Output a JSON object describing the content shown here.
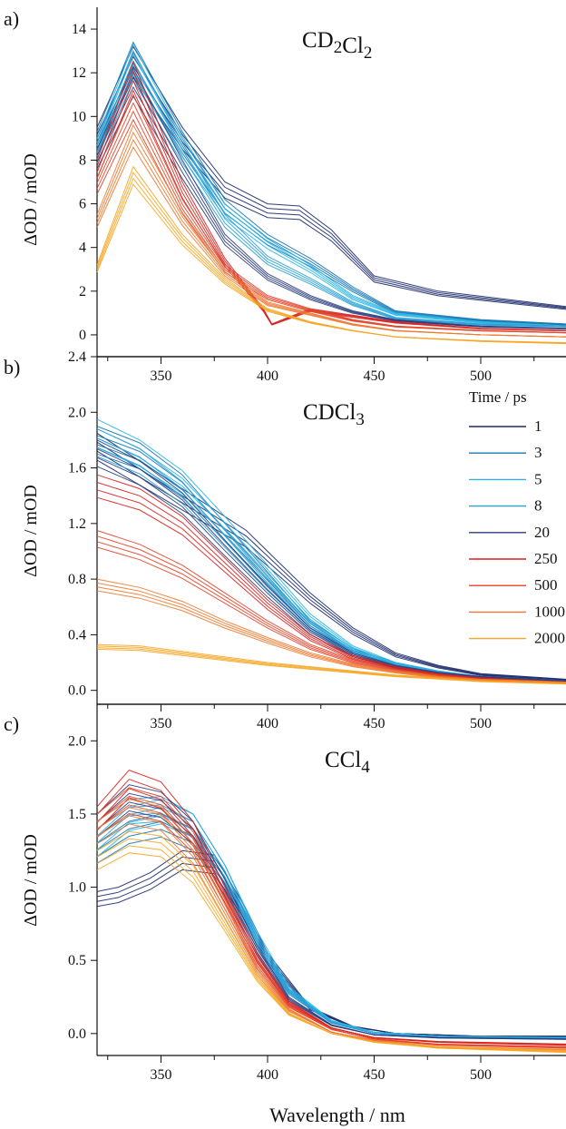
{
  "xlabel": "Wavelength / nm",
  "legend": {
    "title": "Time / ps",
    "entries": [
      {
        "label": "1",
        "color": "#1b2a6b"
      },
      {
        "label": "3",
        "color": "#1678b5"
      },
      {
        "label": "5",
        "color": "#29b6e6"
      },
      {
        "label": "8",
        "color": "#2aa1d6"
      },
      {
        "label": "20",
        "color": "#2b3d7c"
      },
      {
        "label": "250",
        "color": "#d7221f"
      },
      {
        "label": "500",
        "color": "#e4442a"
      },
      {
        "label": "1000",
        "color": "#ee7a30"
      },
      {
        "label": "2000",
        "color": "#f6a623"
      }
    ]
  },
  "chart_data": [
    {
      "type": "line",
      "panel_label": "a)",
      "title": "CD2Cl2",
      "ylabel": "ΔOD / mOD",
      "xlim": [
        320,
        540
      ],
      "ylim": [
        -1,
        15
      ],
      "xticks": [
        "350",
        "400",
        "450",
        "500"
      ],
      "yticks": [
        "0",
        "2",
        "4",
        "6",
        "8",
        "10",
        "12",
        "14"
      ],
      "series": [
        {
          "name": "1",
          "x": [
            320,
            337,
            360,
            380,
            400,
            415,
            430,
            450,
            480,
            540
          ],
          "y": [
            9.5,
            13.2,
            9.5,
            7,
            6,
            5.9,
            4.8,
            2.7,
            2,
            1.3
          ]
        },
        {
          "name": "3",
          "x": [
            320,
            337,
            360,
            380,
            400,
            420,
            440,
            460,
            500,
            540
          ],
          "y": [
            9.3,
            13.4,
            9.3,
            6.2,
            4.6,
            3.5,
            2.2,
            1.1,
            0.7,
            0.5
          ]
        },
        {
          "name": "5",
          "x": [
            320,
            337,
            360,
            380,
            400,
            420,
            440,
            460,
            500,
            540
          ],
          "y": [
            9,
            13.3,
            9.1,
            6,
            4.4,
            3.2,
            1.8,
            1,
            0.6,
            0.4
          ]
        },
        {
          "name": "8",
          "x": [
            320,
            337,
            360,
            380,
            400,
            420,
            440,
            460,
            500,
            540
          ],
          "y": [
            8.8,
            13.0,
            8.8,
            5.5,
            3.6,
            2.6,
            1.5,
            0.8,
            0.5,
            0.4
          ]
        },
        {
          "name": "20",
          "x": [
            320,
            337,
            360,
            380,
            400,
            420,
            440,
            460,
            500,
            540
          ],
          "y": [
            8.5,
            12.2,
            8,
            4.6,
            2.8,
            1.8,
            1.1,
            0.7,
            0.4,
            0.3
          ]
        },
        {
          "name": "250",
          "x": [
            320,
            337,
            360,
            380,
            398,
            402,
            420,
            440,
            460,
            500,
            540
          ],
          "y": [
            8,
            12.5,
            7,
            3.5,
            1.2,
            0.5,
            1.2,
            0.9,
            0.6,
            0.3,
            0.2
          ]
        },
        {
          "name": "500",
          "x": [
            320,
            337,
            360,
            380,
            400,
            420,
            440,
            460,
            500,
            540
          ],
          "y": [
            7.2,
            11,
            6.2,
            3.2,
            1.8,
            1.2,
            0.7,
            0.4,
            0.2,
            0.1
          ]
        },
        {
          "name": "1000",
          "x": [
            320,
            337,
            360,
            380,
            400,
            420,
            440,
            460,
            500,
            540
          ],
          "y": [
            5.5,
            9.6,
            5.6,
            3,
            1.5,
            1,
            0.5,
            0.2,
            0,
            -0.1
          ]
        },
        {
          "name": "2000",
          "x": [
            320,
            337,
            360,
            380,
            400,
            420,
            440,
            460,
            500,
            540
          ],
          "y": [
            3.2,
            7.7,
            4.6,
            2.6,
            1.2,
            0.6,
            0.2,
            -0.1,
            -0.3,
            -0.4
          ]
        }
      ]
    },
    {
      "type": "line",
      "panel_label": "b)",
      "title": "CDCl3",
      "ylabel": "ΔOD / mOD",
      "xlim": [
        320,
        540
      ],
      "ylim": [
        -0.1,
        2.4
      ],
      "xticks": [
        "350",
        "400",
        "450",
        "500"
      ],
      "yticks": [
        "0.0",
        "0.4",
        "0.8",
        "1.2",
        "1.6",
        "2.0",
        "2.4"
      ],
      "series": [
        {
          "name": "1",
          "x": [
            320,
            340,
            360,
            375,
            390,
            400,
            420,
            440,
            460,
            480,
            500,
            540
          ],
          "y": [
            1.85,
            1.65,
            1.45,
            1.3,
            1.15,
            1.0,
            0.7,
            0.45,
            0.27,
            0.18,
            0.12,
            0.08
          ]
        },
        {
          "name": "3",
          "x": [
            320,
            340,
            360,
            380,
            400,
            420,
            440,
            460,
            480,
            500,
            540
          ],
          "y": [
            1.9,
            1.78,
            1.55,
            1.2,
            0.85,
            0.5,
            0.3,
            0.2,
            0.14,
            0.1,
            0.07
          ]
        },
        {
          "name": "5",
          "x": [
            320,
            340,
            360,
            380,
            400,
            420,
            440,
            460,
            480,
            500,
            540
          ],
          "y": [
            1.95,
            1.8,
            1.58,
            1.25,
            0.9,
            0.55,
            0.32,
            0.2,
            0.14,
            0.1,
            0.07
          ]
        },
        {
          "name": "8",
          "x": [
            320,
            340,
            360,
            380,
            400,
            420,
            440,
            460,
            480,
            500,
            540
          ],
          "y": [
            1.88,
            1.74,
            1.5,
            1.15,
            0.8,
            0.48,
            0.28,
            0.18,
            0.13,
            0.1,
            0.07
          ]
        },
        {
          "name": "20",
          "x": [
            320,
            340,
            360,
            380,
            400,
            420,
            440,
            460,
            480,
            500,
            540
          ],
          "y": [
            1.8,
            1.65,
            1.42,
            1.08,
            0.75,
            0.45,
            0.27,
            0.18,
            0.13,
            0.1,
            0.07
          ]
        },
        {
          "name": "250",
          "x": [
            320,
            340,
            360,
            380,
            400,
            420,
            440,
            460,
            480,
            500,
            540
          ],
          "y": [
            1.55,
            1.45,
            1.25,
            0.95,
            0.65,
            0.4,
            0.25,
            0.17,
            0.12,
            0.09,
            0.06
          ]
        },
        {
          "name": "500",
          "x": [
            320,
            340,
            360,
            380,
            400,
            420,
            440,
            460,
            480,
            500,
            540
          ],
          "y": [
            1.15,
            1.05,
            0.9,
            0.7,
            0.5,
            0.33,
            0.22,
            0.15,
            0.11,
            0.08,
            0.06
          ]
        },
        {
          "name": "1000",
          "x": [
            320,
            340,
            360,
            380,
            400,
            420,
            440,
            460,
            480,
            500,
            540
          ],
          "y": [
            0.8,
            0.74,
            0.64,
            0.5,
            0.38,
            0.27,
            0.19,
            0.14,
            0.1,
            0.08,
            0.06
          ]
        },
        {
          "name": "2000",
          "x": [
            320,
            340,
            360,
            380,
            400,
            420,
            440,
            460,
            480,
            500,
            540
          ],
          "y": [
            0.33,
            0.32,
            0.28,
            0.24,
            0.2,
            0.17,
            0.14,
            0.11,
            0.09,
            0.07,
            0.05
          ]
        }
      ]
    },
    {
      "type": "line",
      "panel_label": "c)",
      "title": "CCl4",
      "ylabel": "ΔOD / mOD",
      "xlim": [
        320,
        540
      ],
      "ylim": [
        -0.15,
        2.25
      ],
      "xticks": [
        "350",
        "400",
        "450",
        "500"
      ],
      "yticks": [
        "0.0",
        "0.5",
        "1.0",
        "1.5",
        "2.0"
      ],
      "series": [
        {
          "name": "1",
          "x": [
            320,
            330,
            345,
            360,
            375,
            390,
            400,
            420,
            440,
            460,
            500,
            540
          ],
          "y": [
            0.97,
            1.0,
            1.1,
            1.25,
            1.22,
            0.85,
            0.55,
            0.18,
            0.05,
            0.0,
            -0.02,
            -0.02
          ]
        },
        {
          "name": "3",
          "x": [
            320,
            335,
            350,
            365,
            380,
            395,
            410,
            430,
            450,
            480,
            540
          ],
          "y": [
            1.3,
            1.45,
            1.5,
            1.4,
            1.1,
            0.65,
            0.3,
            0.08,
            0.0,
            -0.02,
            -0.03
          ]
        },
        {
          "name": "5",
          "x": [
            320,
            335,
            350,
            365,
            380,
            395,
            410,
            430,
            450,
            480,
            540
          ],
          "y": [
            1.35,
            1.55,
            1.6,
            1.5,
            1.15,
            0.7,
            0.32,
            0.09,
            0.01,
            -0.02,
            -0.03
          ]
        },
        {
          "name": "8",
          "x": [
            320,
            335,
            350,
            365,
            380,
            395,
            410,
            430,
            450,
            480,
            540
          ],
          "y": [
            1.45,
            1.6,
            1.62,
            1.5,
            1.15,
            0.68,
            0.3,
            0.08,
            0.0,
            -0.03,
            -0.04
          ]
        },
        {
          "name": "20",
          "x": [
            320,
            335,
            350,
            365,
            380,
            395,
            410,
            430,
            450,
            480,
            540
          ],
          "y": [
            1.5,
            1.7,
            1.65,
            1.45,
            1.05,
            0.6,
            0.25,
            0.06,
            -0.01,
            -0.03,
            -0.04
          ]
        },
        {
          "name": "250",
          "x": [
            320,
            335,
            350,
            365,
            380,
            395,
            410,
            430,
            450,
            480,
            540
          ],
          "y": [
            1.55,
            1.8,
            1.72,
            1.45,
            1.0,
            0.55,
            0.22,
            0.04,
            -0.03,
            -0.06,
            -0.08
          ]
        },
        {
          "name": "500",
          "x": [
            320,
            335,
            350,
            365,
            380,
            395,
            410,
            430,
            450,
            480,
            540
          ],
          "y": [
            1.5,
            1.68,
            1.62,
            1.38,
            0.95,
            0.5,
            0.2,
            0.03,
            -0.04,
            -0.08,
            -0.1
          ]
        },
        {
          "name": "1000",
          "x": [
            320,
            335,
            350,
            365,
            380,
            395,
            410,
            430,
            450,
            480,
            540
          ],
          "y": [
            1.45,
            1.6,
            1.55,
            1.3,
            0.88,
            0.45,
            0.17,
            0.01,
            -0.05,
            -0.1,
            -0.12
          ]
        },
        {
          "name": "2000",
          "x": [
            320,
            335,
            350,
            365,
            380,
            395,
            410,
            430,
            450,
            480,
            540
          ],
          "y": [
            1.25,
            1.38,
            1.35,
            1.15,
            0.78,
            0.4,
            0.14,
            0.0,
            -0.06,
            -0.1,
            -0.13
          ]
        }
      ]
    }
  ]
}
